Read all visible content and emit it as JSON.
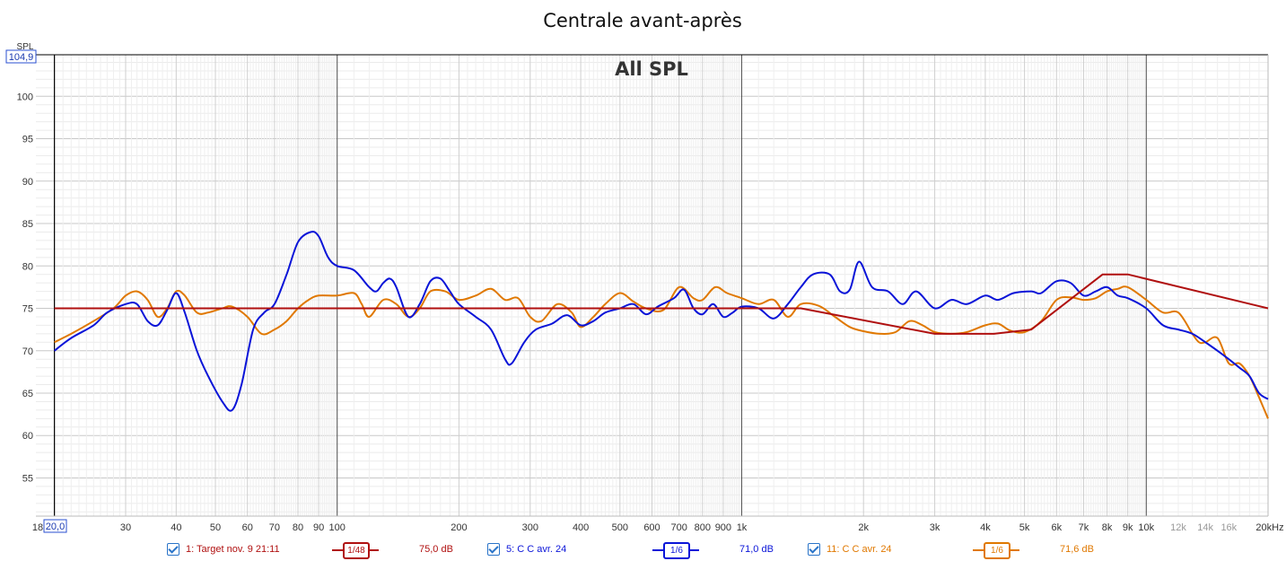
{
  "chart_data": {
    "type": "line",
    "title": "Centrale avant-après",
    "subtitle": "All SPL",
    "ylabel": "SPL",
    "x_scale": "log",
    "xlim": [
      18,
      20000
    ],
    "ylim": [
      50.5,
      104.9
    ],
    "y_top_readout": "104,9",
    "x_left_readout": "20,0",
    "y_ticks": [
      55,
      60,
      65,
      70,
      75,
      80,
      85,
      90,
      95,
      100
    ],
    "y_tick_labels": [
      "55",
      "60",
      "65",
      "70",
      "75",
      "80",
      "85",
      "90",
      "95",
      "100"
    ],
    "x_tick_labels": [
      {
        "f": 18,
        "label": "18",
        "minor": false
      },
      {
        "f": 30,
        "label": "30",
        "minor": false
      },
      {
        "f": 40,
        "label": "40",
        "minor": false
      },
      {
        "f": 50,
        "label": "50",
        "minor": false
      },
      {
        "f": 60,
        "label": "60",
        "minor": false
      },
      {
        "f": 70,
        "label": "70",
        "minor": false
      },
      {
        "f": 80,
        "label": "80",
        "minor": false
      },
      {
        "f": 90,
        "label": "90",
        "minor": false
      },
      {
        "f": 100,
        "label": "100",
        "minor": false
      },
      {
        "f": 200,
        "label": "200",
        "minor": false
      },
      {
        "f": 300,
        "label": "300",
        "minor": false
      },
      {
        "f": 400,
        "label": "400",
        "minor": false
      },
      {
        "f": 500,
        "label": "500",
        "minor": false
      },
      {
        "f": 600,
        "label": "600",
        "minor": false
      },
      {
        "f": 700,
        "label": "700",
        "minor": false
      },
      {
        "f": 800,
        "label": "800",
        "minor": false
      },
      {
        "f": 900,
        "label": "900",
        "minor": false
      },
      {
        "f": 1000,
        "label": "1k",
        "minor": false
      },
      {
        "f": 2000,
        "label": "2k",
        "minor": false
      },
      {
        "f": 3000,
        "label": "3k",
        "minor": false
      },
      {
        "f": 4000,
        "label": "4k",
        "minor": false
      },
      {
        "f": 5000,
        "label": "5k",
        "minor": false
      },
      {
        "f": 6000,
        "label": "6k",
        "minor": false
      },
      {
        "f": 7000,
        "label": "7k",
        "minor": false
      },
      {
        "f": 8000,
        "label": "8k",
        "minor": false
      },
      {
        "f": 9000,
        "label": "9k",
        "minor": false
      },
      {
        "f": 10000,
        "label": "10k",
        "minor": false
      },
      {
        "f": 12000,
        "label": "12k",
        "minor": true
      },
      {
        "f": 14000,
        "label": "14k",
        "minor": true
      },
      {
        "f": 16000,
        "label": "16k",
        "minor": true
      },
      {
        "f": 20000,
        "label": "20kHz",
        "minor": false
      }
    ],
    "grid": true,
    "series": [
      {
        "name": "1: Target nov. 9 21:11",
        "color": "#b01010",
        "smoothing": "1/48",
        "level": "75,0 dB",
        "points": [
          [
            20,
            75
          ],
          [
            1400,
            75
          ],
          [
            3000,
            72
          ],
          [
            4200,
            72
          ],
          [
            5200,
            72.5
          ],
          [
            7800,
            79
          ],
          [
            9000,
            79
          ],
          [
            20000,
            75
          ]
        ]
      },
      {
        "name": "5: C C avr. 24",
        "color": "#0a14d8",
        "smoothing": "1/6",
        "level": "71,0 dB",
        "points": [
          [
            20,
            70
          ],
          [
            22,
            71.5
          ],
          [
            25,
            73
          ],
          [
            27,
            74.5
          ],
          [
            30,
            75.5
          ],
          [
            32,
            75.5
          ],
          [
            34,
            73.5
          ],
          [
            36,
            73
          ],
          [
            38,
            74.8
          ],
          [
            40,
            76.8
          ],
          [
            42,
            74.5
          ],
          [
            45,
            70
          ],
          [
            48,
            67
          ],
          [
            52,
            64
          ],
          [
            55,
            63
          ],
          [
            58,
            66
          ],
          [
            62,
            72.5
          ],
          [
            66,
            74.5
          ],
          [
            70,
            75.5
          ],
          [
            75,
            79
          ],
          [
            80,
            82.8
          ],
          [
            86,
            84
          ],
          [
            90,
            83.5
          ],
          [
            95,
            81
          ],
          [
            100,
            80
          ],
          [
            110,
            79.5
          ],
          [
            120,
            77.5
          ],
          [
            125,
            77
          ],
          [
            130,
            78
          ],
          [
            135,
            78.5
          ],
          [
            140,
            77.5
          ],
          [
            150,
            74
          ],
          [
            160,
            75.5
          ],
          [
            170,
            78.2
          ],
          [
            180,
            78.5
          ],
          [
            190,
            77
          ],
          [
            200,
            75.5
          ],
          [
            220,
            74
          ],
          [
            240,
            72.5
          ],
          [
            260,
            69
          ],
          [
            270,
            68.5
          ],
          [
            290,
            71
          ],
          [
            310,
            72.5
          ],
          [
            340,
            73.2
          ],
          [
            370,
            74.2
          ],
          [
            400,
            73
          ],
          [
            430,
            73.5
          ],
          [
            460,
            74.5
          ],
          [
            500,
            75
          ],
          [
            540,
            75.5
          ],
          [
            580,
            74.3
          ],
          [
            620,
            75.2
          ],
          [
            680,
            76.2
          ],
          [
            720,
            77.2
          ],
          [
            760,
            75
          ],
          [
            800,
            74.3
          ],
          [
            850,
            75.5
          ],
          [
            900,
            74
          ],
          [
            950,
            74.5
          ],
          [
            1000,
            75.2
          ],
          [
            1100,
            75
          ],
          [
            1200,
            73.8
          ],
          [
            1300,
            75.5
          ],
          [
            1400,
            77.5
          ],
          [
            1500,
            79
          ],
          [
            1650,
            79
          ],
          [
            1750,
            77
          ],
          [
            1850,
            77.2
          ],
          [
            1950,
            80.5
          ],
          [
            2100,
            77.5
          ],
          [
            2300,
            77
          ],
          [
            2500,
            75.5
          ],
          [
            2700,
            77
          ],
          [
            3000,
            75
          ],
          [
            3300,
            76
          ],
          [
            3600,
            75.5
          ],
          [
            4000,
            76.5
          ],
          [
            4300,
            76
          ],
          [
            4700,
            76.8
          ],
          [
            5200,
            77
          ],
          [
            5500,
            76.8
          ],
          [
            6000,
            78.2
          ],
          [
            6500,
            78
          ],
          [
            7000,
            76.5
          ],
          [
            7500,
            77
          ],
          [
            8000,
            77.5
          ],
          [
            8500,
            76.5
          ],
          [
            9000,
            76.2
          ],
          [
            10000,
            75
          ],
          [
            11000,
            73
          ],
          [
            12000,
            72.5
          ],
          [
            13000,
            72
          ],
          [
            14000,
            71
          ],
          [
            15000,
            70
          ],
          [
            16000,
            69
          ],
          [
            17000,
            68
          ],
          [
            18000,
            67
          ],
          [
            19000,
            65
          ],
          [
            20000,
            64.3
          ]
        ]
      },
      {
        "name": "11: C C avr. 24",
        "color": "#e07800",
        "smoothing": "1/6",
        "level": "71,6 dB",
        "points": [
          [
            20,
            71
          ],
          [
            22,
            72
          ],
          [
            25,
            73.5
          ],
          [
            28,
            75
          ],
          [
            30,
            76.5
          ],
          [
            32,
            77
          ],
          [
            34,
            76
          ],
          [
            36,
            74
          ],
          [
            38,
            75
          ],
          [
            40,
            77
          ],
          [
            42,
            76.5
          ],
          [
            45,
            74.5
          ],
          [
            48,
            74.5
          ],
          [
            52,
            75
          ],
          [
            55,
            75.2
          ],
          [
            60,
            74
          ],
          [
            65,
            72
          ],
          [
            70,
            72.5
          ],
          [
            75,
            73.5
          ],
          [
            80,
            75
          ],
          [
            85,
            76
          ],
          [
            90,
            76.5
          ],
          [
            100,
            76.5
          ],
          [
            110,
            76.8
          ],
          [
            115,
            75.5
          ],
          [
            120,
            74
          ],
          [
            130,
            76
          ],
          [
            140,
            75.5
          ],
          [
            150,
            74
          ],
          [
            160,
            75
          ],
          [
            170,
            77
          ],
          [
            185,
            77
          ],
          [
            200,
            76
          ],
          [
            220,
            76.5
          ],
          [
            240,
            77.3
          ],
          [
            260,
            76
          ],
          [
            280,
            76.2
          ],
          [
            300,
            74
          ],
          [
            320,
            73.5
          ],
          [
            350,
            75.5
          ],
          [
            380,
            74.5
          ],
          [
            400,
            72.8
          ],
          [
            430,
            74
          ],
          [
            460,
            75.5
          ],
          [
            500,
            76.8
          ],
          [
            540,
            75.8
          ],
          [
            580,
            75
          ],
          [
            640,
            74.8
          ],
          [
            700,
            77.5
          ],
          [
            760,
            76.2
          ],
          [
            800,
            76
          ],
          [
            860,
            77.5
          ],
          [
            920,
            76.8
          ],
          [
            1000,
            76.2
          ],
          [
            1100,
            75.5
          ],
          [
            1200,
            76
          ],
          [
            1300,
            74
          ],
          [
            1400,
            75.5
          ],
          [
            1550,
            75.3
          ],
          [
            1700,
            74
          ],
          [
            1850,
            72.8
          ],
          [
            2000,
            72.3
          ],
          [
            2200,
            72
          ],
          [
            2400,
            72.2
          ],
          [
            2600,
            73.5
          ],
          [
            2800,
            73
          ],
          [
            3000,
            72.2
          ],
          [
            3300,
            72
          ],
          [
            3600,
            72.2
          ],
          [
            4000,
            73
          ],
          [
            4300,
            73.2
          ],
          [
            4600,
            72.4
          ],
          [
            5000,
            72.2
          ],
          [
            5500,
            73.5
          ],
          [
            6000,
            76
          ],
          [
            6500,
            76.3
          ],
          [
            7000,
            76
          ],
          [
            7500,
            76.2
          ],
          [
            8000,
            77
          ],
          [
            8500,
            77.3
          ],
          [
            9000,
            77.5
          ],
          [
            10000,
            76
          ],
          [
            11000,
            74.5
          ],
          [
            12000,
            74.5
          ],
          [
            13000,
            72
          ],
          [
            13500,
            71
          ],
          [
            14000,
            71
          ],
          [
            15000,
            71.5
          ],
          [
            16000,
            68.5
          ],
          [
            17000,
            68.5
          ],
          [
            18000,
            67
          ],
          [
            19000,
            64.5
          ],
          [
            20000,
            62
          ]
        ]
      }
    ]
  }
}
